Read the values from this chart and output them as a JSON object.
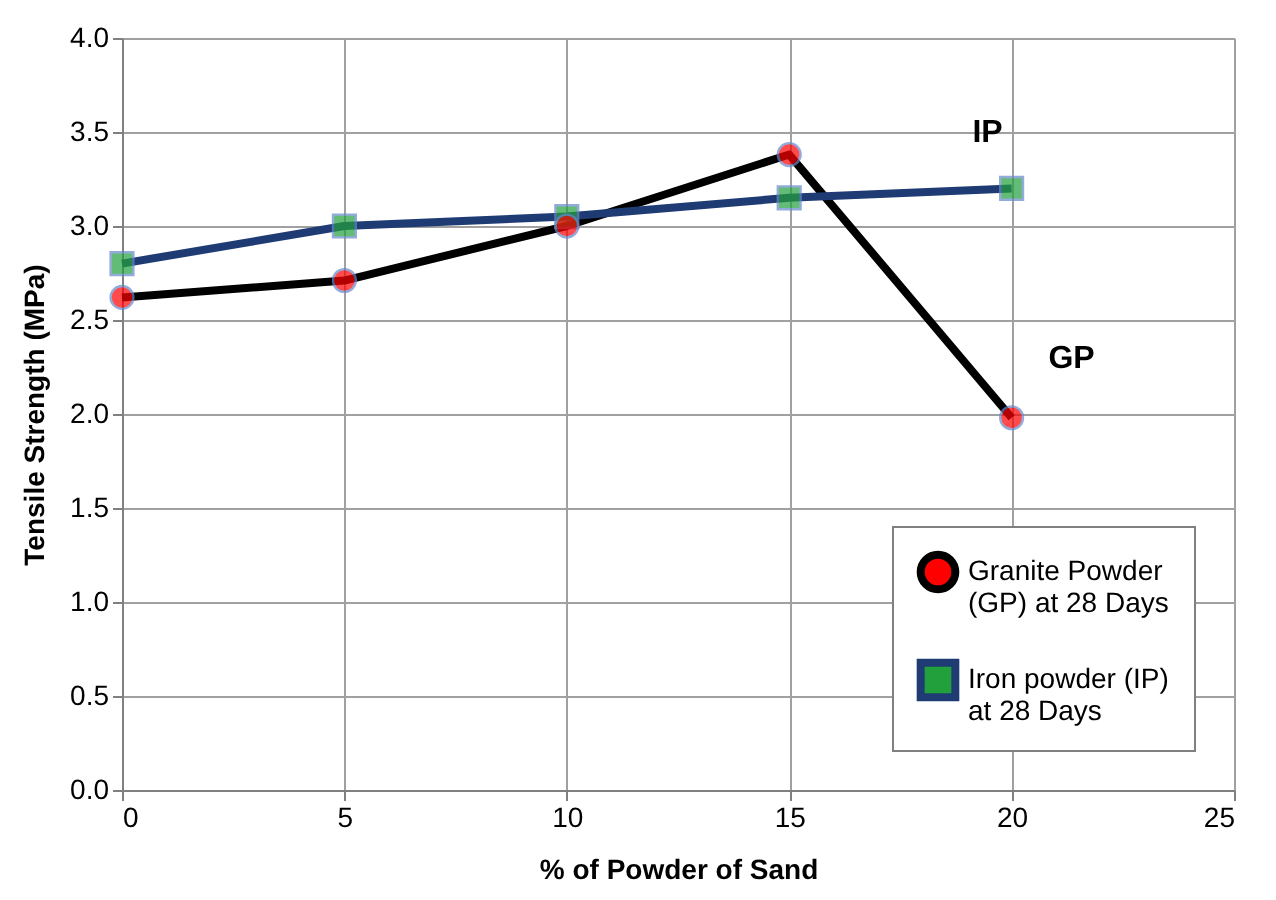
{
  "chart_data": {
    "type": "line",
    "xlabel": "% of Powder of Sand",
    "ylabel": "Tensile Strength (MPa)",
    "x": [
      0,
      5,
      10,
      15,
      20
    ],
    "series": [
      {
        "name": "Granite Powder (GP) at 28 Days",
        "color": "#000000",
        "marker": "circle",
        "values": [
          2.62,
          2.71,
          3.0,
          3.38,
          1.98
        ]
      },
      {
        "name": "Iron powder (IP) at 28 Days",
        "color": "#1f3b73",
        "marker": "square",
        "values": [
          2.8,
          3.0,
          3.05,
          3.15,
          3.2
        ]
      }
    ],
    "xlim": [
      0,
      25
    ],
    "xticks": [
      0,
      5,
      10,
      15,
      20,
      25
    ],
    "ylim": [
      0,
      4
    ],
    "yticks": [
      {
        "value": 0,
        "label": "0.0"
      },
      {
        "value": 0.5,
        "label": "0.5"
      },
      {
        "value": 1,
        "label": "1.0"
      },
      {
        "value": 1.5,
        "label": "1.5"
      },
      {
        "value": 2,
        "label": "2.0"
      },
      {
        "value": 2.5,
        "label": "2.5"
      },
      {
        "value": 3,
        "label": "3.0"
      },
      {
        "value": 3.5,
        "label": "3.5"
      },
      {
        "value": 4,
        "label": "4.0"
      }
    ],
    "annotations": [
      {
        "text": "IP",
        "x": 20,
        "y": 3.2
      },
      {
        "text": "GP",
        "x": 20,
        "y": 1.98
      }
    ],
    "grid": true,
    "legend": "bottom right",
    "line_style": "solid"
  }
}
